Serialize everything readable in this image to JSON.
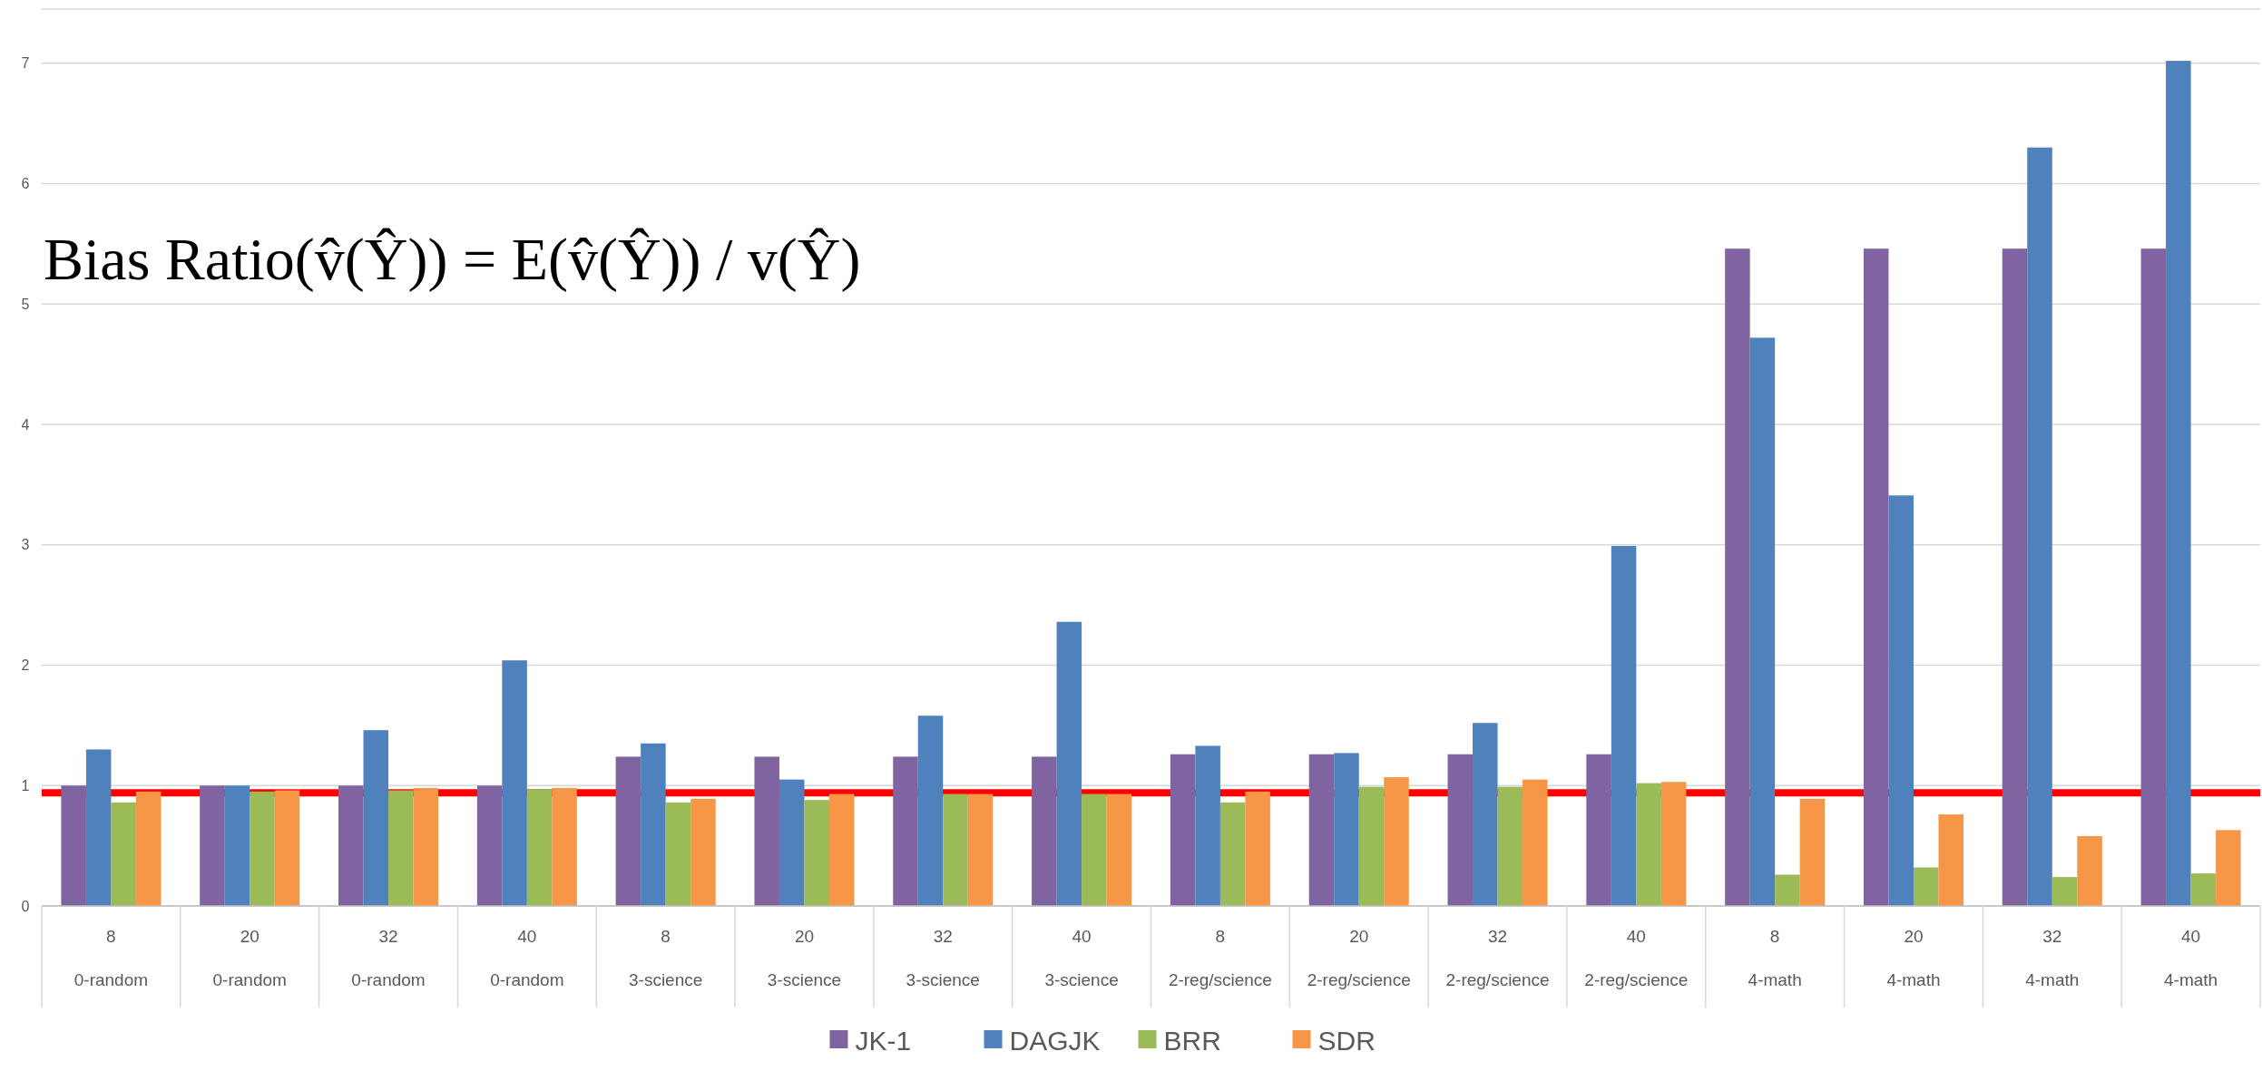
{
  "chart_data": {
    "type": "bar",
    "categories": [
      "8\n0-random",
      "20\n0-random",
      "32\n0-random",
      "40\n0-random",
      "8\n3-science",
      "20\n3-science",
      "32\n3-science",
      "40\n3-science",
      "8\n2-reg/science",
      "20\n2-reg/science",
      "32\n2-reg/science",
      "40\n2-reg/science",
      "8\n4-math",
      "20\n4-math",
      "32\n4-math",
      "40\n4-math"
    ],
    "series": [
      {
        "name": "JK-1",
        "color": "#8064a2",
        "values": [
          1.0,
          1.0,
          1.0,
          1.0,
          1.24,
          1.24,
          1.24,
          1.24,
          1.26,
          1.26,
          1.26,
          1.26,
          5.46,
          5.46,
          5.46,
          5.46
        ]
      },
      {
        "name": "DAGJK",
        "color": "#4f81bd",
        "values": [
          1.3,
          1.0,
          1.46,
          2.04,
          1.35,
          1.05,
          1.58,
          2.36,
          1.33,
          1.27,
          1.52,
          2.99,
          4.72,
          3.41,
          6.3,
          7.02
        ]
      },
      {
        "name": "BRR",
        "color": "#9bbb59",
        "values": [
          0.86,
          0.95,
          0.96,
          0.97,
          0.86,
          0.88,
          0.93,
          0.93,
          0.86,
          0.99,
          0.99,
          1.02,
          0.26,
          0.32,
          0.24,
          0.27
        ]
      },
      {
        "name": "SDR",
        "color": "#f79646",
        "values": [
          0.95,
          0.96,
          0.98,
          0.98,
          0.89,
          0.93,
          0.93,
          0.93,
          0.95,
          1.07,
          1.05,
          1.03,
          0.89,
          0.76,
          0.58,
          0.63
        ]
      }
    ],
    "ylim": [
      0,
      7.45
    ],
    "yticks": [
      0,
      1,
      2,
      3,
      4,
      5,
      6,
      7
    ],
    "grid": "y",
    "legend": "bottom",
    "ref_lines": [
      {
        "axis": "y",
        "value": 0.94,
        "color": "#ff0000"
      }
    ],
    "annotations": [
      "Bias Ratio(v̂(Ŷ)) = E(v̂(Ŷ)) / v(Ŷ)"
    ]
  }
}
